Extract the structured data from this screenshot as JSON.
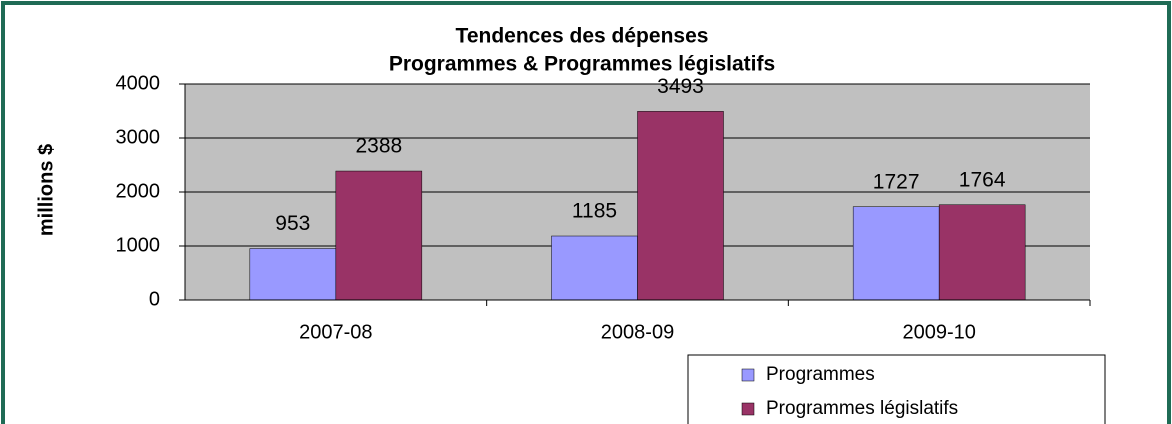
{
  "chart_data": {
    "type": "bar",
    "title": "Tendences des dépenses",
    "subtitle": "Programmes & Programmes législatifs",
    "y_label": "millions $",
    "categories": [
      "2007-08",
      "2008-09",
      "2009-10"
    ],
    "series": [
      {
        "name": "Programmes",
        "color": "#9999ff",
        "values": [
          953,
          1185,
          1727
        ]
      },
      {
        "name": "Programmes législatifs",
        "color": "#993366",
        "values": [
          2388,
          3493,
          1764
        ]
      }
    ],
    "ylim": [
      0,
      4000
    ],
    "yticks": [
      0,
      1000,
      2000,
      3000,
      4000
    ],
    "grid": true,
    "legend": "bottom-right"
  }
}
